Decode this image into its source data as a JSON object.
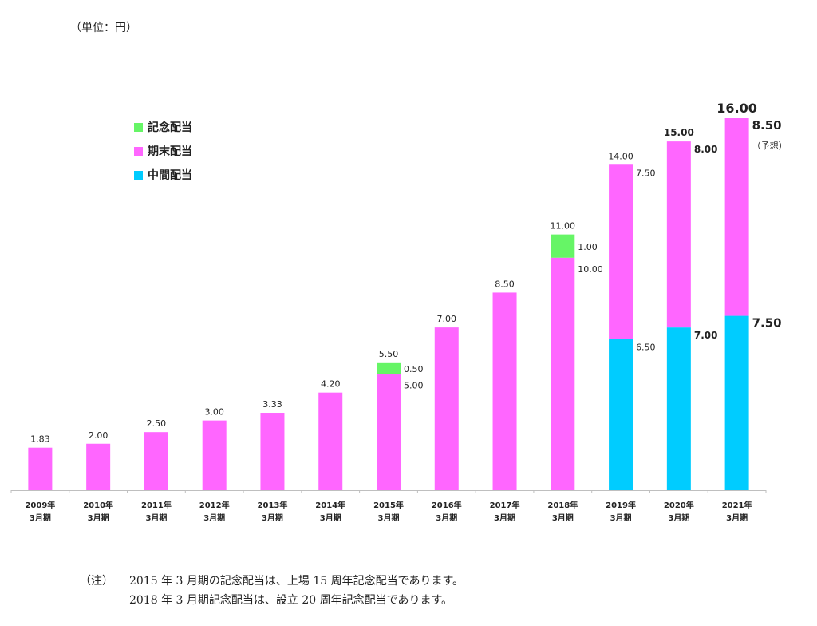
{
  "unit_label": "（単位：円）",
  "legend": [
    {
      "label": "記念配当",
      "color": "#66f566"
    },
    {
      "label": "期末配当",
      "color": "#ff66ff"
    },
    {
      "label": "中間配当",
      "color": "#00ccff"
    }
  ],
  "chart_data": {
    "type": "bar",
    "stacked": true,
    "categories": [
      [
        "2009年",
        "3月期"
      ],
      [
        "2010年",
        "3月期"
      ],
      [
        "2011年",
        "3月期"
      ],
      [
        "2012年",
        "3月期"
      ],
      [
        "2013年",
        "3月期"
      ],
      [
        "2014年",
        "3月期"
      ],
      [
        "2015年",
        "3月期"
      ],
      [
        "2016年",
        "3月期"
      ],
      [
        "2017年",
        "3月期"
      ],
      [
        "2018年",
        "3月期"
      ],
      [
        "2019年",
        "3月期"
      ],
      [
        "2020年",
        "3月期"
      ],
      [
        "2021年",
        "3月期"
      ]
    ],
    "ylim": [
      0,
      16.5
    ],
    "series": [
      {
        "name": "中間配当",
        "color": "#00ccff",
        "values": [
          0,
          0,
          0,
          0,
          0,
          0,
          0,
          0,
          0,
          0,
          6.5,
          7.0,
          7.5
        ]
      },
      {
        "name": "期末配当",
        "color": "#ff66ff",
        "values": [
          1.83,
          2.0,
          2.5,
          3.0,
          3.33,
          4.2,
          5.0,
          7.0,
          8.5,
          10.0,
          7.5,
          8.0,
          8.5
        ]
      },
      {
        "name": "記念配当",
        "color": "#66f566",
        "values": [
          0,
          0,
          0,
          0,
          0,
          0,
          0.5,
          0,
          0,
          1.0,
          0,
          0,
          0
        ]
      }
    ],
    "total_labels": [
      "1.83",
      "2.00",
      "2.50",
      "3.00",
      "3.33",
      "4.20",
      "5.50",
      "7.00",
      "8.50",
      "11.00",
      "14.00",
      "15.00",
      "16.00"
    ],
    "side_labels": [
      {
        "index": 6,
        "text": "0.50",
        "series": "記念配当"
      },
      {
        "index": 6,
        "text": "5.00",
        "series": "期末配当"
      },
      {
        "index": 9,
        "text": "1.00",
        "series": "記念配当"
      },
      {
        "index": 9,
        "text": "10.00",
        "series": "期末配当"
      },
      {
        "index": 10,
        "text": "7.50",
        "series": "期末配当"
      },
      {
        "index": 10,
        "text": "6.50",
        "series": "中間配当"
      },
      {
        "index": 11,
        "text": "8.00",
        "series": "期末配当"
      },
      {
        "index": 11,
        "text": "7.00",
        "series": "中間配当"
      },
      {
        "index": 12,
        "text": "8.50",
        "series": "期末配当"
      },
      {
        "index": 12,
        "text": "7.50",
        "series": "中間配当"
      }
    ],
    "forecast_note": {
      "index": 12,
      "text": "（予想）"
    }
  },
  "notes": {
    "head": "（注）",
    "lines": [
      "2015 年 3 月期の記念配当は、上場 15 周年記念配当であります。",
      "2018 年 3 月期記念配当は、設立 20 周年記念配当であります。"
    ]
  }
}
